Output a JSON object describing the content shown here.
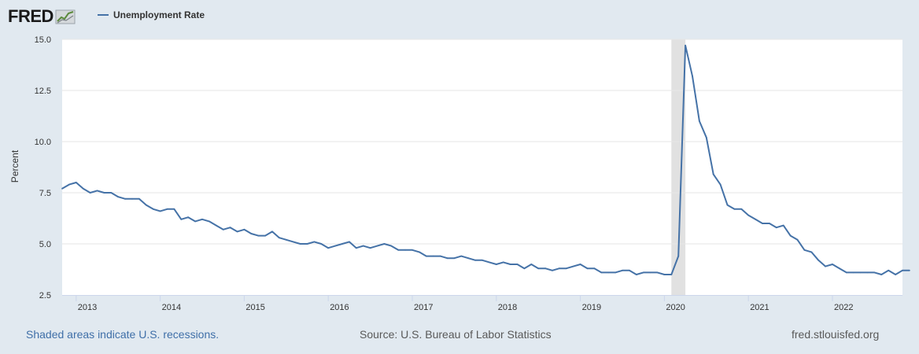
{
  "header": {
    "logo_text": "FRED",
    "legend_label": "Unemployment Rate"
  },
  "footer": {
    "recession_note": "Shaded areas indicate U.S. recessions.",
    "source": "Source: U.S. Bureau of Labor Statistics",
    "site": "fred.stlouisfed.org"
  },
  "colors": {
    "series": "#4572a7",
    "recession": "#e1e1e1",
    "background": "#e1e9f0",
    "plot": "#ffffff"
  },
  "chart_data": {
    "type": "line",
    "title": "",
    "xlabel": "",
    "ylabel": "Percent",
    "ylim": [
      2.5,
      15.0
    ],
    "yticks": [
      "2.5",
      "5.0",
      "7.5",
      "10.0",
      "12.5",
      "15.0"
    ],
    "xlim": [
      "2012-11",
      "2022-11"
    ],
    "xticks": [
      "2013",
      "2014",
      "2015",
      "2016",
      "2017",
      "2018",
      "2019",
      "2020",
      "2021",
      "2022"
    ],
    "grid": true,
    "legend": "top-left",
    "recessions": [
      {
        "start": "2020-02",
        "end": "2020-04"
      }
    ],
    "series": [
      {
        "name": "Unemployment Rate",
        "start": "2012-11",
        "frequency": "monthly",
        "values": [
          7.7,
          7.9,
          8.0,
          7.7,
          7.5,
          7.6,
          7.5,
          7.5,
          7.3,
          7.2,
          7.2,
          7.2,
          6.9,
          6.7,
          6.6,
          6.7,
          6.7,
          6.2,
          6.3,
          6.1,
          6.2,
          6.1,
          5.9,
          5.7,
          5.8,
          5.6,
          5.7,
          5.5,
          5.4,
          5.4,
          5.6,
          5.3,
          5.2,
          5.1,
          5.0,
          5.0,
          5.1,
          5.0,
          4.8,
          4.9,
          5.0,
          5.1,
          4.8,
          4.9,
          4.8,
          4.9,
          5.0,
          4.9,
          4.7,
          4.7,
          4.7,
          4.6,
          4.4,
          4.4,
          4.4,
          4.3,
          4.3,
          4.4,
          4.3,
          4.2,
          4.2,
          4.1,
          4.0,
          4.1,
          4.0,
          4.0,
          3.8,
          4.0,
          3.8,
          3.8,
          3.7,
          3.8,
          3.8,
          3.9,
          4.0,
          3.8,
          3.8,
          3.6,
          3.6,
          3.6,
          3.7,
          3.7,
          3.5,
          3.6,
          3.6,
          3.6,
          3.5,
          3.5,
          4.4,
          14.7,
          13.2,
          11.0,
          10.2,
          8.4,
          7.9,
          6.9,
          6.7,
          6.7,
          6.4,
          6.2,
          6.0,
          6.0,
          5.8,
          5.9,
          5.4,
          5.2,
          4.7,
          4.6,
          4.2,
          3.9,
          4.0,
          3.8,
          3.6,
          3.6,
          3.6,
          3.6,
          3.6,
          3.5,
          3.7,
          3.5,
          3.7,
          3.7
        ]
      }
    ]
  }
}
